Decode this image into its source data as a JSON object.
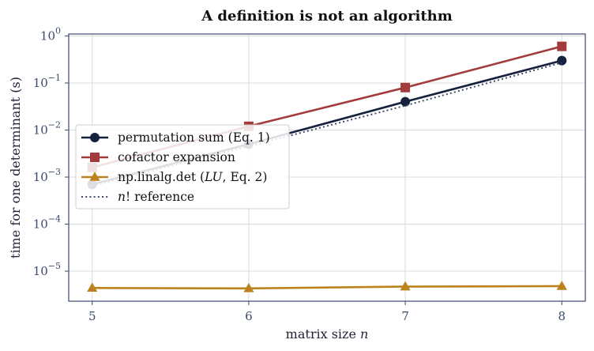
{
  "chart_data": {
    "type": "line",
    "title": "A definition is not an algorithm",
    "xlabel": "matrix size",
    "xlabel_var": "n",
    "ylabel": "time for one determinant (s)",
    "x": [
      5,
      6,
      7,
      8
    ],
    "xlim": [
      4.85,
      8.15
    ],
    "yscale": "log",
    "ylim": [
      2.3e-06,
      1.1
    ],
    "y_ticks": [
      {
        "value": 1e-05,
        "base": "10",
        "exp": "−5"
      },
      {
        "value": 0.0001,
        "base": "10",
        "exp": "−4"
      },
      {
        "value": 0.001,
        "base": "10",
        "exp": "−3"
      },
      {
        "value": 0.01,
        "base": "10",
        "exp": "−2"
      },
      {
        "value": 0.1,
        "base": "10",
        "exp": "−1"
      },
      {
        "value": 1,
        "base": "10",
        "exp": "0"
      }
    ],
    "grid": true,
    "legend_position": "center-left",
    "series": [
      {
        "name": "permutation sum (Eq. 1)",
        "values": [
          0.0007,
          0.005,
          0.04,
          0.3
        ],
        "color": "#16213e",
        "marker": "circle",
        "style": "solid"
      },
      {
        "name": "cofactor expansion",
        "values": [
          0.0016,
          0.012,
          0.08,
          0.6
        ],
        "color": "#a23b3b",
        "marker": "square",
        "style": "solid"
      },
      {
        "name": "np.linalg.det (LU, Eq. 2)",
        "values": [
          4.4e-06,
          4.3e-06,
          4.7e-06,
          4.8e-06
        ],
        "color": "#bd821e",
        "marker": "triangle",
        "style": "solid"
      },
      {
        "name": "n! reference",
        "values": [
          0.00065,
          0.0045,
          0.033,
          0.27
        ],
        "color": "#3d4a6a",
        "marker": "none",
        "style": "dotted"
      }
    ],
    "legend_labels": [
      {
        "parts": [
          {
            "t": "permutation sum (Eq. 1)"
          }
        ]
      },
      {
        "parts": [
          {
            "t": "cofactor expansion"
          }
        ]
      },
      {
        "parts": [
          {
            "t": "np.linalg.det ("
          },
          {
            "t": "LU",
            "i": true
          },
          {
            "t": ", Eq. 2)"
          }
        ]
      },
      {
        "parts": [
          {
            "t": "n",
            "i": true
          },
          {
            "t": "!  reference"
          }
        ]
      }
    ]
  }
}
